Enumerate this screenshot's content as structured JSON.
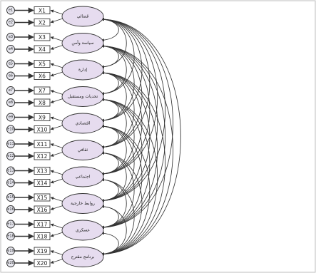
{
  "diagram": {
    "colors": {
      "factor_fill": "#e6dcef",
      "box_fill": "#ffffff",
      "stroke": "#333333",
      "error_fill": "#e6e6ee"
    },
    "factors": [
      {
        "label": "قضائي",
        "indicators": [
          "X1",
          "X2"
        ],
        "errors": [
          "e1",
          "e2"
        ]
      },
      {
        "label": "سياسة وأمن",
        "indicators": [
          "X3",
          "X4"
        ],
        "errors": [
          "e3",
          "e4"
        ]
      },
      {
        "label": "إدارة",
        "indicators": [
          "X5",
          "X6"
        ],
        "errors": [
          "e5",
          "e6"
        ]
      },
      {
        "label": "تحديات ومستقبل",
        "indicators": [
          "X7",
          "X8"
        ],
        "errors": [
          "e7",
          "e8"
        ]
      },
      {
        "label": "اقتصادي",
        "indicators": [
          "X9",
          "X10"
        ],
        "errors": [
          "e9",
          "e10"
        ]
      },
      {
        "label": "ثقافي",
        "indicators": [
          "X11",
          "X12"
        ],
        "errors": [
          "e11",
          "e12"
        ]
      },
      {
        "label": "اجتماعي",
        "indicators": [
          "X13",
          "X14"
        ],
        "errors": [
          "e13",
          "e14"
        ]
      },
      {
        "label": "روابط خارجية",
        "indicators": [
          "X15",
          "X16"
        ],
        "errors": [
          "e15",
          "e16"
        ]
      },
      {
        "label": "عسكري",
        "indicators": [
          "X17",
          "X18"
        ],
        "errors": [
          "e17",
          "e18"
        ]
      },
      {
        "label": "برنامج مقترح",
        "indicators": [
          "X19",
          "X20"
        ],
        "errors": [
          "e19",
          "e20"
        ]
      }
    ]
  }
}
